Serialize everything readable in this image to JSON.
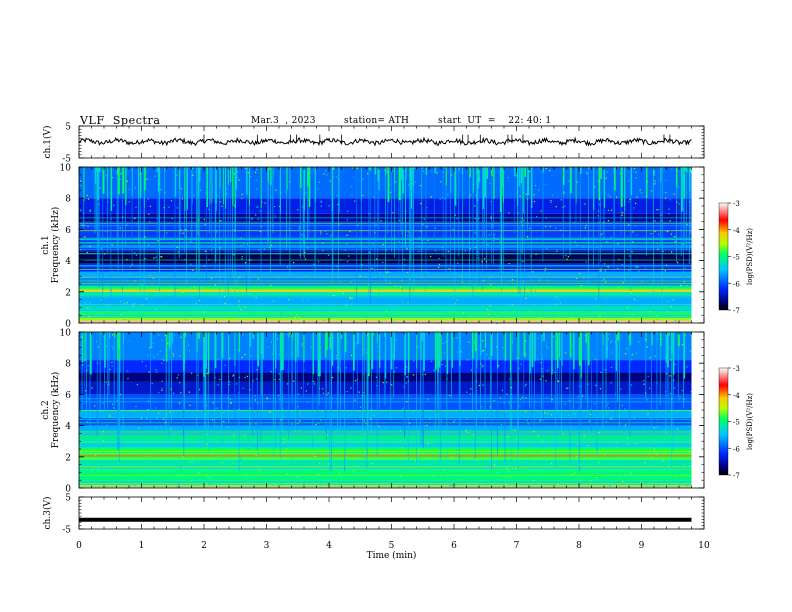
{
  "header": {
    "title": "VLF  Spectra",
    "date": "Mar.3  , 2023",
    "station": "station= ATH",
    "start": "start  UT  =    22: 40: 1"
  },
  "chart_data": [
    {
      "type": "line",
      "id": "ch1",
      "ylabel": "ch.1(V)",
      "y_ticks": [
        "5",
        "-5"
      ],
      "ylim": [
        -5,
        5
      ],
      "xlim": [
        0,
        10
      ],
      "series_level": 0.1,
      "data_end_min": 9.8
    },
    {
      "type": "heatmap",
      "id": "ch1-spectrogram",
      "ylabel": "ch.1\nFrequency (kHz)",
      "y_ticks": [
        "10",
        "8",
        "6",
        "4",
        "2",
        "0"
      ],
      "ylim": [
        0,
        10
      ],
      "xlim": [
        0,
        10
      ],
      "data_end_min": 9.8,
      "colorbar": {
        "label": "log(PSD)(V²/Hz)",
        "ticks": [
          "-3",
          "-4",
          "-5",
          "-6",
          "-7"
        ],
        "range": [
          -7,
          -3
        ]
      }
    },
    {
      "type": "heatmap",
      "id": "ch2-spectrogram",
      "ylabel": "ch.2\nFrequency (kHz)",
      "y_ticks": [
        "10",
        "8",
        "6",
        "4",
        "2",
        "0"
      ],
      "ylim": [
        0,
        10
      ],
      "xlim": [
        0,
        10
      ],
      "data_end_min": 9.8,
      "colorbar": {
        "label": "log(PSD)(V²/Hz)",
        "ticks": [
          "-3",
          "-4",
          "-5",
          "-6",
          "-7"
        ],
        "range": [
          -7,
          -3
        ]
      }
    },
    {
      "type": "line",
      "id": "ch3",
      "ylabel": "ch.3(V)",
      "y_ticks": [
        "5",
        "-5"
      ],
      "ylim": [
        -5,
        5
      ],
      "xlim": [
        0,
        10
      ],
      "series_level": -2.1,
      "data_end_min": 9.8
    }
  ],
  "x_axis": {
    "label": "Time  (min)",
    "ticks": [
      "0",
      "1",
      "2",
      "3",
      "4",
      "5",
      "6",
      "7",
      "8",
      "9",
      "10"
    ]
  }
}
